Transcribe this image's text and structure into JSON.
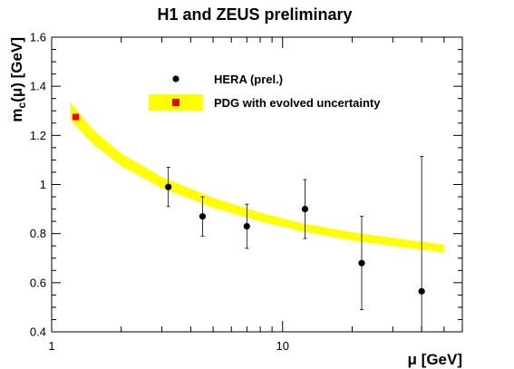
{
  "chart_data": {
    "type": "scatter",
    "title": "H1 and ZEUS preliminary",
    "xlabel": "μ [GeV]",
    "ylabel_main": "m",
    "ylabel_sub": "c",
    "ylabel_tail": "(μ) [GeV]",
    "x_scale": "log",
    "xlim": [
      1,
      60
    ],
    "ylim": [
      0.4,
      1.6
    ],
    "x_major_ticks": [
      1,
      10
    ],
    "x_tick_labels": [
      "1",
      "10"
    ],
    "y_ticks": [
      0.4,
      0.6,
      0.8,
      1.0,
      1.2,
      1.4,
      1.6
    ],
    "y_tick_labels": [
      "0.4",
      "0.6",
      "0.8",
      "1",
      "1.2",
      "1.4",
      "1.6"
    ],
    "grid": false,
    "legend_position": "top-center",
    "series": [
      {
        "name": "HERA (prel.)",
        "marker": "circle",
        "color": "#000000",
        "points": [
          {
            "x": 3.2,
            "y": 0.99,
            "err_lo": 0.08,
            "err_hi": 0.08
          },
          {
            "x": 4.5,
            "y": 0.87,
            "err_lo": 0.08,
            "err_hi": 0.08
          },
          {
            "x": 7.0,
            "y": 0.83,
            "err_lo": 0.09,
            "err_hi": 0.09
          },
          {
            "x": 12.5,
            "y": 0.9,
            "err_lo": 0.12,
            "err_hi": 0.12
          },
          {
            "x": 22.0,
            "y": 0.68,
            "err_lo": 0.19,
            "err_hi": 0.19
          },
          {
            "x": 40.0,
            "y": 0.565,
            "err_lo": 0.18,
            "err_hi": 0.55
          }
        ]
      },
      {
        "name": "PDG with evolved uncertainty",
        "marker": "square",
        "color": "#ee0000",
        "band_color": "#ffff00",
        "points": [
          {
            "x": 1.27,
            "y": 1.275
          }
        ],
        "band": [
          {
            "x": 1.2,
            "lo": 1.265,
            "hi": 1.335
          },
          {
            "x": 1.5,
            "lo": 1.165,
            "hi": 1.225
          },
          {
            "x": 2.0,
            "lo": 1.075,
            "hi": 1.125
          },
          {
            "x": 3.0,
            "lo": 0.985,
            "hi": 1.03
          },
          {
            "x": 5.0,
            "lo": 0.905,
            "hi": 0.945
          },
          {
            "x": 8.0,
            "lo": 0.85,
            "hi": 0.885
          },
          {
            "x": 12.0,
            "lo": 0.81,
            "hi": 0.843
          },
          {
            "x": 20.0,
            "lo": 0.772,
            "hi": 0.805
          },
          {
            "x": 30.0,
            "lo": 0.75,
            "hi": 0.782
          },
          {
            "x": 50.0,
            "lo": 0.722,
            "hi": 0.755
          }
        ]
      }
    ]
  }
}
